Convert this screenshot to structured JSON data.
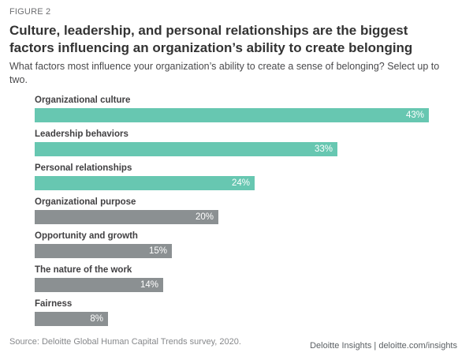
{
  "header": {
    "figure_label": "FIGURE 2",
    "title": "Culture, leadership, and personal relationships are the biggest factors influencing an organization’s ability to create belonging",
    "subtitle": "What factors most influence your organization’s ability to create a sense of belonging? Select up to two."
  },
  "chart_data": {
    "type": "bar",
    "orientation": "horizontal",
    "title": "Culture, leadership, and personal relationships are the biggest factors influencing an organization’s ability to create belonging",
    "categories": [
      "Organizational culture",
      "Leadership behaviors",
      "Personal relationships",
      "Organizational purpose",
      "Opportunity and growth",
      "The nature of the work",
      "Fairness"
    ],
    "values": [
      43,
      33,
      24,
      20,
      15,
      14,
      8
    ],
    "value_labels": [
      "43%",
      "33%",
      "24%",
      "20%",
      "15%",
      "14%",
      "8%"
    ],
    "bar_colors": [
      "#67C7B1",
      "#67C7B1",
      "#67C7B1",
      "#8B9092",
      "#8B9092",
      "#8B9092",
      "#8B9092"
    ],
    "highlight_color": "#67C7B1",
    "muted_color": "#8B9092",
    "value_label_color": "#FFFFFF",
    "value_label_position": "inside-right",
    "xlim": [
      0,
      43
    ],
    "xlabel": "",
    "ylabel": "",
    "grid": false,
    "legend": false
  },
  "footer": {
    "source": "Source: Deloitte Global Human Capital Trends survey, 2020.",
    "brand": "Deloitte Insights | deloitte.com/insights"
  }
}
